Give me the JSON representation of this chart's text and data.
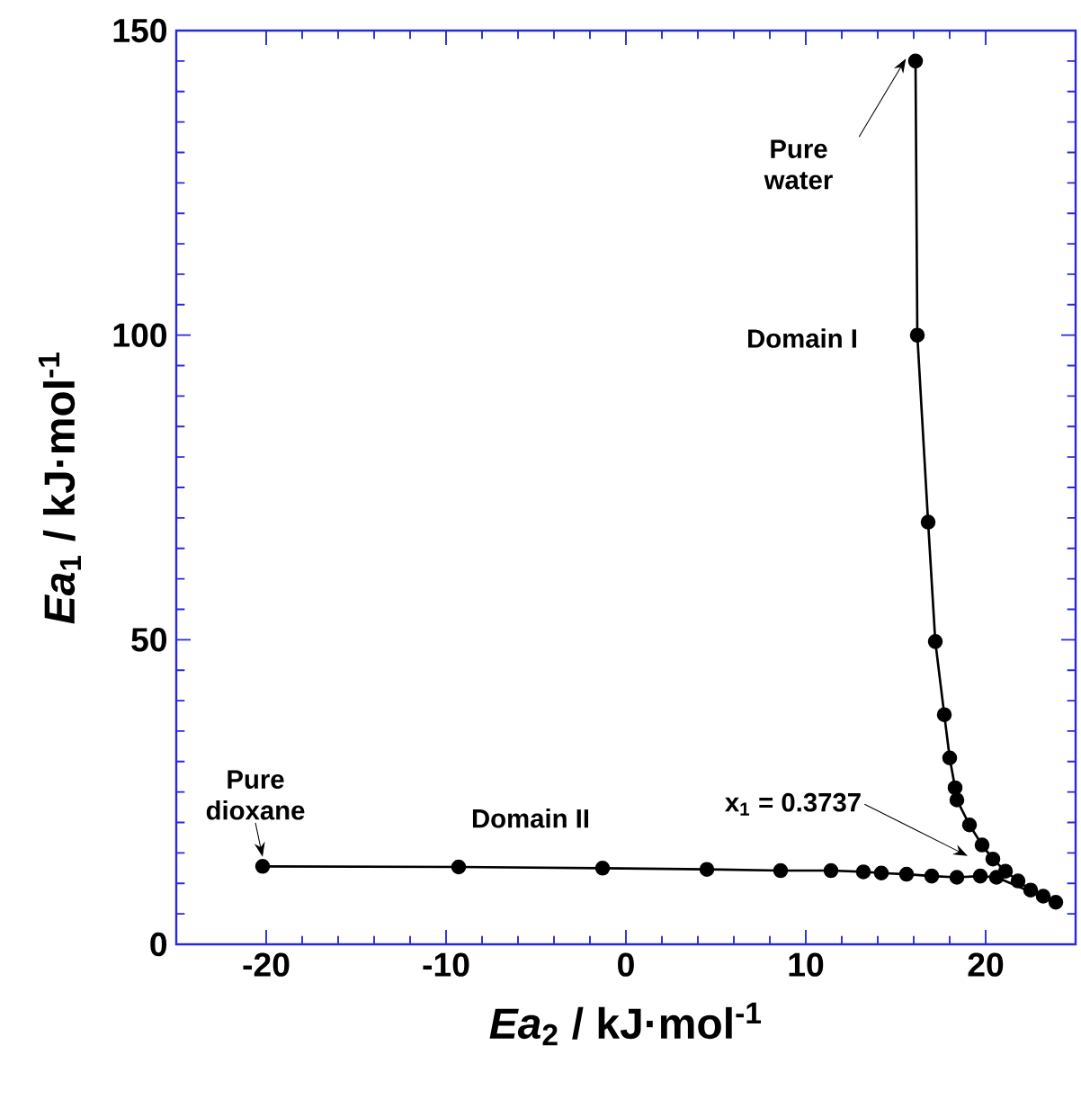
{
  "chart_data": {
    "type": "line",
    "xlabel": "*Ea*$_{2}$ / kJ·mol$^{-1}$",
    "ylabel": "*Ea*$_{1}$ / kJ·mol$^{-1}$",
    "x": [
      -20.2,
      -9.3,
      -1.3,
      4.5,
      8.6,
      11.4,
      13.2,
      14.2,
      15.6,
      17.0,
      18.4,
      19.7,
      20.6,
      23.9,
      23.2,
      22.5,
      21.8,
      21.1,
      20.4,
      19.8,
      19.1,
      18.4,
      18.3,
      18.0,
      17.7,
      17.2,
      16.8,
      16.2,
      16.1
    ],
    "values": [
      12.8,
      12.7,
      12.5,
      12.3,
      12.1,
      12.1,
      11.9,
      11.7,
      11.5,
      11.2,
      11.0,
      11.2,
      11.0,
      6.9,
      7.9,
      8.9,
      10.4,
      12.0,
      14.0,
      16.3,
      19.6,
      23.7,
      25.7,
      30.6,
      37.7,
      49.7,
      69.3,
      100.0,
      145.0
    ],
    "color": "#000000",
    "marker": "circle",
    "line_style": "solid",
    "xlim": [
      -25,
      25
    ],
    "ylim": [
      0,
      150
    ],
    "xticks": [
      -20,
      -10,
      0,
      10,
      20
    ],
    "yticks": [
      0,
      50,
      100,
      150
    ],
    "annotations": [
      {
        "text": "Pure water",
        "x": 16.1,
        "y": 145.0
      },
      "Domain I",
      "x$_{1}$ = 0.3737",
      {
        "text": "Pure dioxane",
        "x": -20.2,
        "y": 12.8
      },
      "Domain II"
    ]
  }
}
